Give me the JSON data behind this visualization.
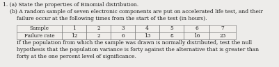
{
  "line1": "1. (a) State the properties of Binomial distribution.",
  "line2": "(b) A random sample of seven electronic components are put on accelerated life test, and their",
  "line3": "failure occur at the following times from the start of the test (in hours).",
  "line4": "If the population from which the sample was drawn is normally distributed, test the null",
  "line5": "hypothesis that the population variance is forty against the alternative that is greater than",
  "line6": "forty at the one percent level of significance.",
  "table_headers": [
    "Sample",
    "1",
    "2",
    "3",
    "4",
    "5",
    "6",
    "7"
  ],
  "table_row": [
    "Failure rate",
    "12",
    "2",
    "6",
    "13",
    "8",
    "16",
    "23"
  ],
  "bg_color": "#edecea",
  "text_color": "#1a1a1a",
  "font_size": 5.5
}
